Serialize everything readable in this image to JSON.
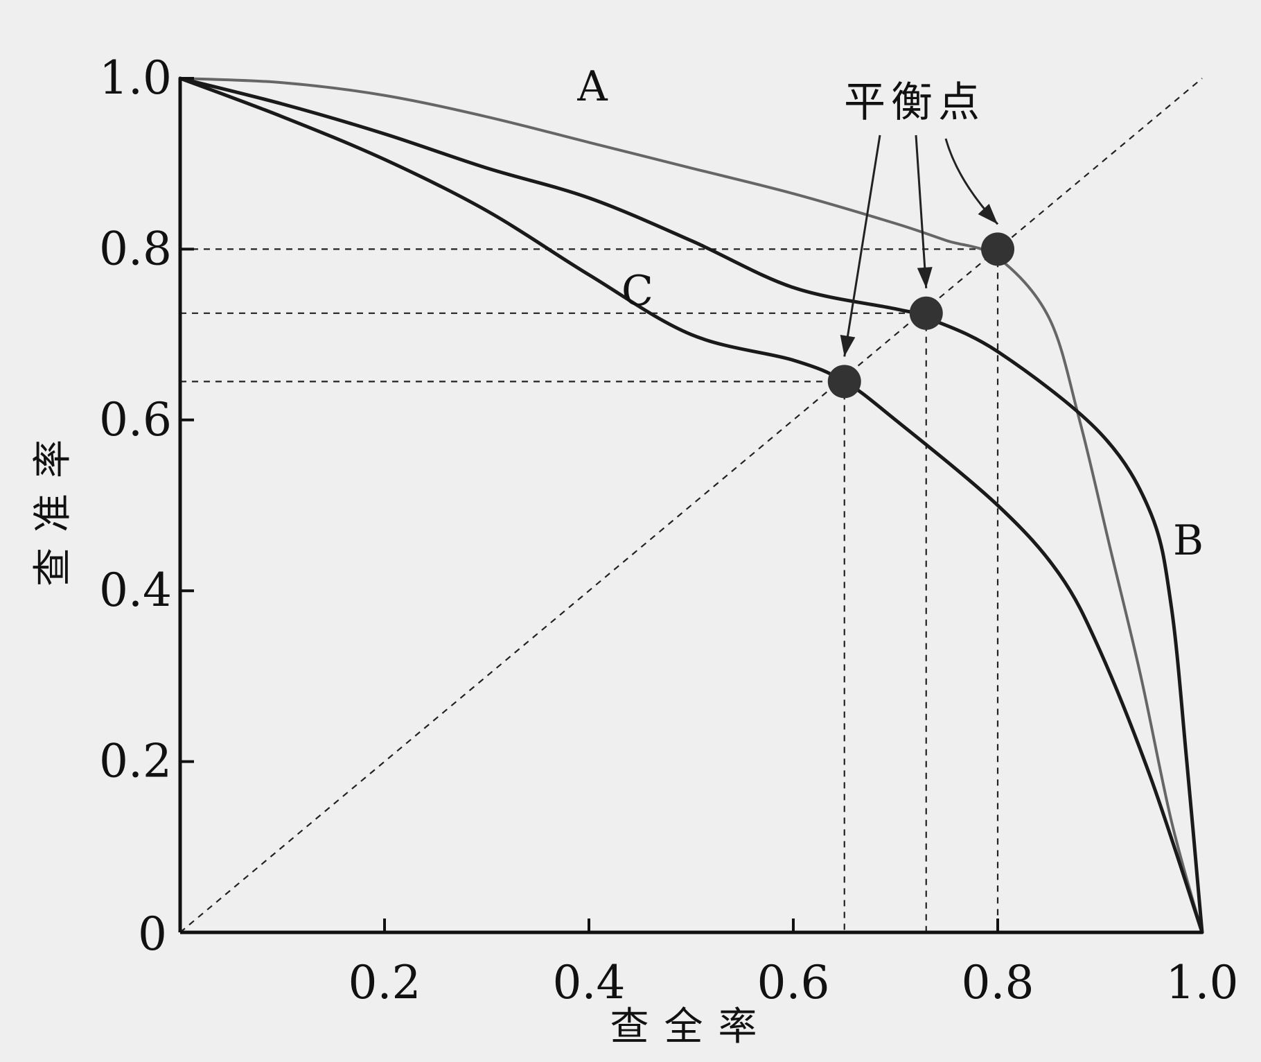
{
  "chart_data": {
    "type": "line",
    "xlabel": "查全率",
    "ylabel": "查准率",
    "xlim": [
      0,
      1.0
    ],
    "ylim": [
      0,
      1.0
    ],
    "x_ticks": [
      {
        "value": 0.2,
        "label": "0.2"
      },
      {
        "value": 0.4,
        "label": "0.4"
      },
      {
        "value": 0.6,
        "label": "0.6"
      },
      {
        "value": 0.8,
        "label": "0.8"
      },
      {
        "value": 1.0,
        "label": "1.0"
      }
    ],
    "y_ticks": [
      {
        "value": 0.2,
        "label": "0.2"
      },
      {
        "value": 0.4,
        "label": "0.4"
      },
      {
        "value": 0.6,
        "label": "0.6"
      },
      {
        "value": 0.8,
        "label": "0.8"
      },
      {
        "value": 1.0,
        "label": "1.0"
      }
    ],
    "origin_label": "0",
    "grid": false,
    "series": [
      {
        "name": "A",
        "color": "#666666",
        "points": [
          [
            0,
            1.0
          ],
          [
            0.1,
            0.995
          ],
          [
            0.2,
            0.98
          ],
          [
            0.3,
            0.955
          ],
          [
            0.4,
            0.925
          ],
          [
            0.5,
            0.895
          ],
          [
            0.6,
            0.865
          ],
          [
            0.7,
            0.83
          ],
          [
            0.75,
            0.81
          ],
          [
            0.8,
            0.79
          ],
          [
            0.85,
            0.72
          ],
          [
            0.88,
            0.6
          ],
          [
            0.91,
            0.45
          ],
          [
            0.94,
            0.3
          ],
          [
            0.97,
            0.13
          ],
          [
            1.0,
            0
          ]
        ]
      },
      {
        "name": "B",
        "color": "#1a1a1a",
        "points": [
          [
            0,
            1.0
          ],
          [
            0.1,
            0.97
          ],
          [
            0.2,
            0.935
          ],
          [
            0.3,
            0.895
          ],
          [
            0.4,
            0.86
          ],
          [
            0.5,
            0.81
          ],
          [
            0.6,
            0.755
          ],
          [
            0.7,
            0.73
          ],
          [
            0.73,
            0.72
          ],
          [
            0.8,
            0.68
          ],
          [
            0.9,
            0.585
          ],
          [
            0.95,
            0.49
          ],
          [
            0.97,
            0.38
          ],
          [
            0.985,
            0.2
          ],
          [
            1.0,
            0
          ]
        ]
      },
      {
        "name": "C",
        "color": "#1a1a1a",
        "points": [
          [
            0,
            1.0
          ],
          [
            0.1,
            0.955
          ],
          [
            0.2,
            0.905
          ],
          [
            0.3,
            0.845
          ],
          [
            0.4,
            0.77
          ],
          [
            0.5,
            0.7
          ],
          [
            0.6,
            0.67
          ],
          [
            0.65,
            0.645
          ],
          [
            0.7,
            0.6
          ],
          [
            0.8,
            0.5
          ],
          [
            0.86,
            0.42
          ],
          [
            0.9,
            0.33
          ],
          [
            0.95,
            0.18
          ],
          [
            1.0,
            0
          ]
        ]
      }
    ],
    "diagonal": [
      [
        0,
        0
      ],
      [
        1.0,
        1.0
      ]
    ],
    "break_even_points": [
      {
        "x": 0.65,
        "y": 0.645,
        "series": "C"
      },
      {
        "x": 0.73,
        "y": 0.725,
        "series": "B"
      },
      {
        "x": 0.8,
        "y": 0.8,
        "series": "A"
      }
    ],
    "annotation": "平衡点"
  }
}
